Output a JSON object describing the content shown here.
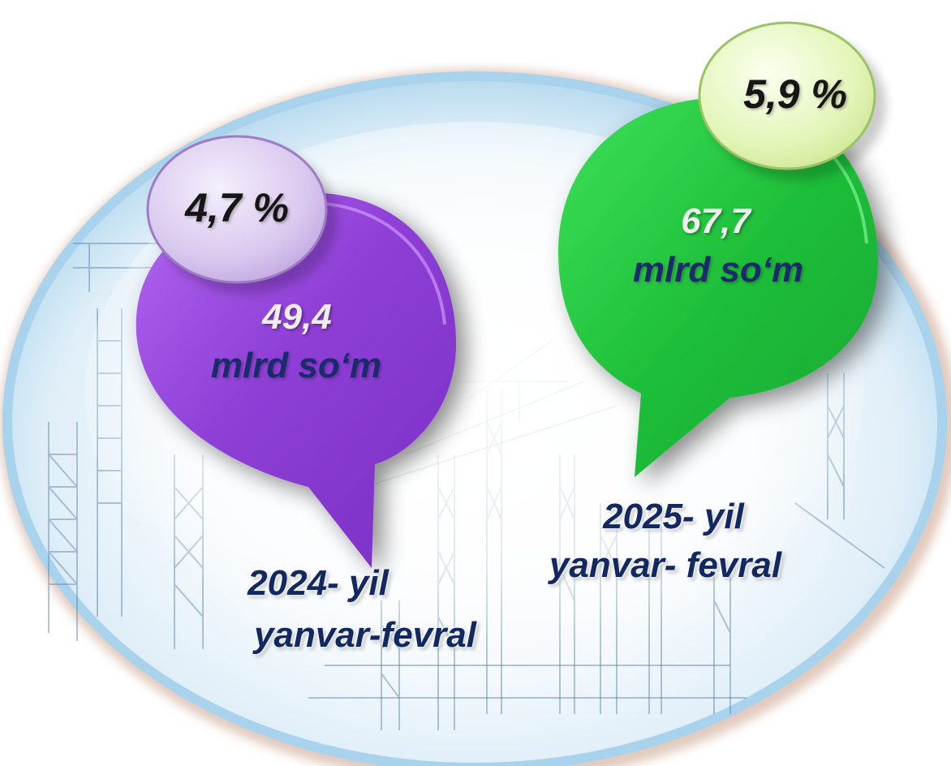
{
  "colors": {
    "bubble_2024": "#8e3fd6",
    "bubble_2025": "#22c43c",
    "pct_circle_2024": "#d9c8ee",
    "pct_circle_2025": "#e3f5b8",
    "text_dark_blue": "#1b2a6b",
    "text_light": "#eeeeee"
  },
  "bubble_2024": {
    "percent": "4,7 %",
    "value": "49,4",
    "unit": "mlrd so‘m",
    "period_line1": "2024- yil",
    "period_line2": "yanvar-fevral"
  },
  "bubble_2025": {
    "percent": "5,9 %",
    "value": "67,7",
    "unit": "mlrd so‘m",
    "period_line1": "2025- yil",
    "period_line2": "yanvar- fevral"
  }
}
